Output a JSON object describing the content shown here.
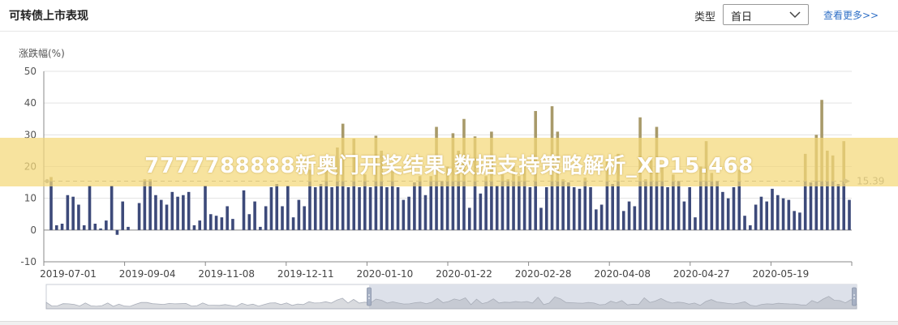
{
  "header": {
    "title": "可转债上市表现",
    "type_label": "类型",
    "select_value": "首日",
    "more_link": "查看更多>>"
  },
  "banner": {
    "text": "7777788888新奥门开奖结果,数据支持策略解析_XP15.468"
  },
  "colors": {
    "positive_bar": "#3d4a7a",
    "average_bar": "#a89a6a",
    "negative_bar": "#3d4a7a",
    "average_line": "#999999",
    "banner": "#f4d878",
    "link": "#2f6fc6"
  },
  "chart_data": {
    "type": "bar",
    "ylabel": "涨跌幅(%)",
    "ylim": [
      -10,
      50
    ],
    "yticks": [
      "-10",
      "0",
      "10",
      "20",
      "30",
      "40",
      "50"
    ],
    "xtick_labels": [
      "2019-07-01",
      "2019-09-04",
      "2019-11-08",
      "2019-12-11",
      "2020-01-10",
      "2020-01-22",
      "2020-02-28",
      "2020-04-08",
      "2020-04-27",
      "2020-05-19"
    ],
    "average_line": {
      "value": 15.39,
      "label": "15.39"
    },
    "grid": true,
    "values": [
      16.7,
      1.5,
      2,
      11,
      10.5,
      8,
      1.5,
      14,
      2,
      0.5,
      3,
      14,
      -1.5,
      9,
      1,
      0,
      8.5,
      16,
      16,
      11,
      9.5,
      8,
      12,
      10.5,
      11,
      12,
      1.5,
      3,
      14,
      5,
      4.5,
      4,
      7.5,
      3.5,
      0,
      12.5,
      5,
      9,
      1,
      7.5,
      13.5,
      14.5,
      7.5,
      14,
      4,
      9.5,
      7.5,
      19,
      13.5,
      14.5,
      19,
      13.5,
      26,
      33.5,
      13.5,
      28.8,
      13.5,
      17.5,
      13.5,
      29.7,
      25,
      13.5,
      18.5,
      13.5,
      9.5,
      10.5,
      15,
      17,
      11,
      17,
      32.5,
      15.5,
      20,
      30.5,
      25,
      35,
      7,
      29.5,
      11.5,
      17,
      31,
      14,
      17.5,
      16,
      20,
      17,
      20,
      13.5,
      37.5,
      7,
      13.5,
      39,
      31,
      16,
      15,
      13.5,
      13,
      16.5,
      13.5,
      6.5,
      8,
      21.5,
      14.5,
      24,
      6,
      9,
      7.5,
      35.5,
      16,
      22,
      32.5,
      20.5,
      13.5,
      17.5,
      15.5,
      9,
      13.5,
      4,
      20,
      28,
      18,
      15.5,
      12,
      10,
      13.5,
      19,
      4.5,
      1.5,
      8,
      10.5,
      9,
      13,
      11,
      10,
      9.5,
      6,
      5.5,
      24,
      15,
      30,
      41,
      25,
      23.5,
      14.5,
      28,
      9.5
    ]
  }
}
